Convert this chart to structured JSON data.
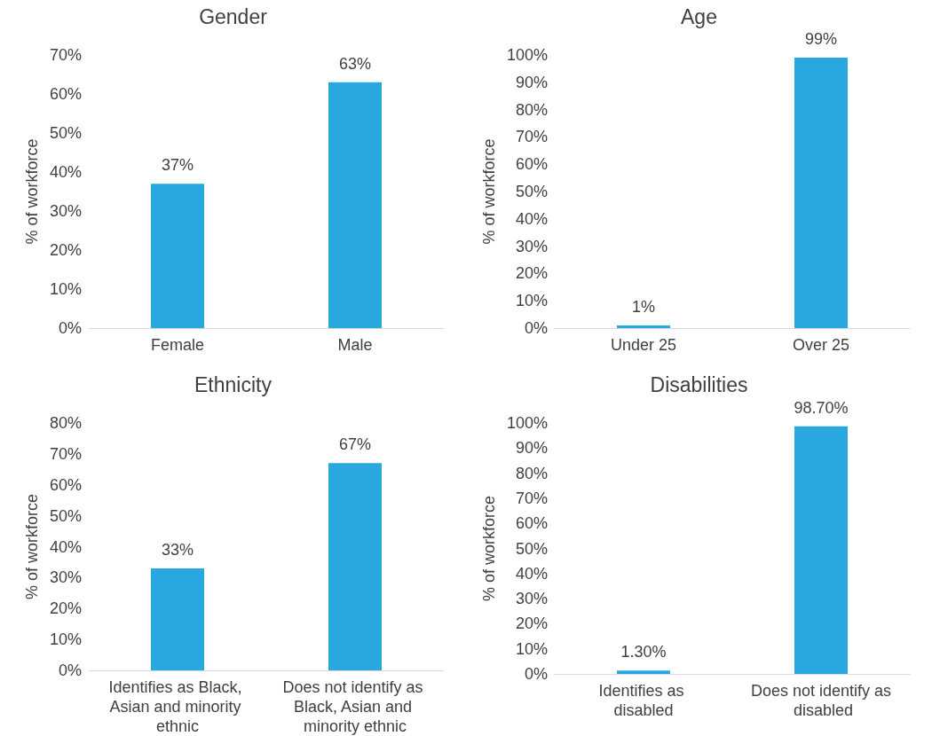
{
  "chart_data": [
    {
      "type": "bar",
      "title": "Gender",
      "ylabel": "% of workforce",
      "categories": [
        "Female",
        "Male"
      ],
      "values": [
        37,
        63
      ],
      "value_labels": [
        "37%",
        "63%"
      ],
      "color": "#29a8e0",
      "ylim": [
        0,
        70
      ],
      "yticks": [
        {
          "value": 0,
          "label": "0%"
        },
        {
          "value": 10,
          "label": "10%"
        },
        {
          "value": 20,
          "label": "20%"
        },
        {
          "value": 30,
          "label": "30%"
        },
        {
          "value": 40,
          "label": "40%"
        },
        {
          "value": 50,
          "label": "50%"
        },
        {
          "value": 60,
          "label": "60%"
        },
        {
          "value": 70,
          "label": "70%"
        }
      ],
      "grid": false
    },
    {
      "type": "bar",
      "title": "Age",
      "ylabel": "% of workforce",
      "categories": [
        "Under 25",
        "Over 25"
      ],
      "values": [
        1,
        99
      ],
      "value_labels": [
        "1%",
        "99%"
      ],
      "color": "#29a8e0",
      "ylim": [
        0,
        100
      ],
      "yticks": [
        {
          "value": 0,
          "label": "0%"
        },
        {
          "value": 10,
          "label": "10%"
        },
        {
          "value": 20,
          "label": "20%"
        },
        {
          "value": 30,
          "label": "30%"
        },
        {
          "value": 40,
          "label": "40%"
        },
        {
          "value": 50,
          "label": "50%"
        },
        {
          "value": 60,
          "label": "60%"
        },
        {
          "value": 70,
          "label": "70%"
        },
        {
          "value": 80,
          "label": "80%"
        },
        {
          "value": 90,
          "label": "90%"
        },
        {
          "value": 100,
          "label": "100%"
        }
      ],
      "grid": false
    },
    {
      "type": "bar",
      "title": "Ethnicity",
      "ylabel": "% of workforce",
      "categories": [
        "Identifies as Black, Asian and minority ethnic",
        "Does not identify as Black, Asian and minority ethnic"
      ],
      "values": [
        33,
        67
      ],
      "value_labels": [
        "33%",
        "67%"
      ],
      "color": "#29a8e0",
      "ylim": [
        0,
        80
      ],
      "yticks": [
        {
          "value": 0,
          "label": "0%"
        },
        {
          "value": 10,
          "label": "10%"
        },
        {
          "value": 20,
          "label": "20%"
        },
        {
          "value": 30,
          "label": "30%"
        },
        {
          "value": 40,
          "label": "40%"
        },
        {
          "value": 50,
          "label": "50%"
        },
        {
          "value": 60,
          "label": "60%"
        },
        {
          "value": 70,
          "label": "70%"
        },
        {
          "value": 80,
          "label": "80%"
        }
      ],
      "grid": false
    },
    {
      "type": "bar",
      "title": "Disabilities",
      "ylabel": "% of workforce",
      "categories": [
        "Identifies as disabled",
        "Does not identify as disabled"
      ],
      "values": [
        1.3,
        98.7
      ],
      "value_labels": [
        "1.30%",
        "98.70%"
      ],
      "color": "#29a8e0",
      "ylim": [
        0,
        100
      ],
      "yticks": [
        {
          "value": 0,
          "label": "0%"
        },
        {
          "value": 10,
          "label": "10%"
        },
        {
          "value": 20,
          "label": "20%"
        },
        {
          "value": 30,
          "label": "30%"
        },
        {
          "value": 40,
          "label": "40%"
        },
        {
          "value": 50,
          "label": "50%"
        },
        {
          "value": 60,
          "label": "60%"
        },
        {
          "value": 70,
          "label": "70%"
        },
        {
          "value": 80,
          "label": "80%"
        },
        {
          "value": 90,
          "label": "90%"
        },
        {
          "value": 100,
          "label": "100%"
        }
      ],
      "grid": false
    }
  ]
}
